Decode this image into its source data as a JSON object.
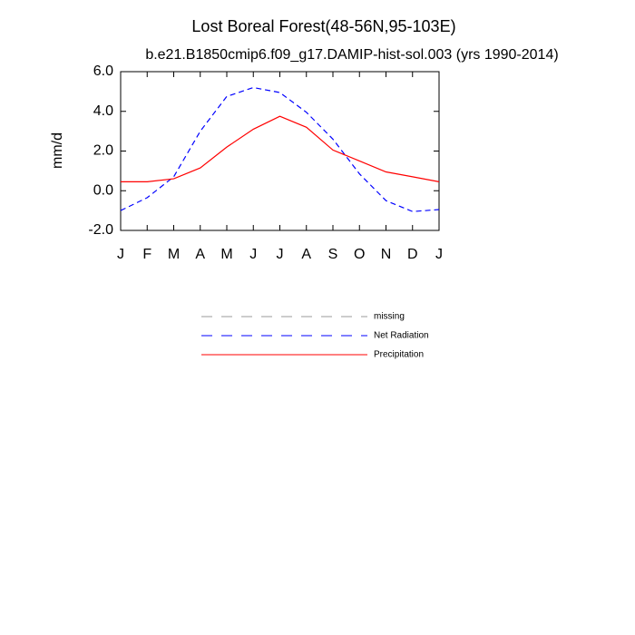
{
  "chart_data": {
    "type": "line",
    "title": "Lost Boreal Forest(48-56N,95-103E)",
    "subtitle": "b.e21.B1850cmip6.f09_g17.DAMIP-hist-sol.003 (yrs 1990-2014)",
    "y_label": "mm/d",
    "categories": [
      "J",
      "F",
      "M",
      "A",
      "M",
      "J",
      "J",
      "A",
      "S",
      "O",
      "N",
      "D",
      "J"
    ],
    "ylim": [
      -2,
      6
    ],
    "yticks": [
      {
        "value": -2,
        "label": "-2.0"
      },
      {
        "value": 0,
        "label": "0.0"
      },
      {
        "value": 2,
        "label": "2.0"
      },
      {
        "value": 4,
        "label": "4.0"
      },
      {
        "value": 6,
        "label": "6.0"
      }
    ],
    "grid": false,
    "series": [
      {
        "name": "missing",
        "color": "#999999",
        "line_style": "dashed",
        "values": [
          null,
          null,
          null,
          null,
          null,
          null,
          null,
          null,
          null,
          null,
          null,
          null,
          null
        ]
      },
      {
        "name": "Net Radiation",
        "color": "#0000ff",
        "line_style": "dashed",
        "values": [
          -1.0,
          -0.35,
          0.7,
          3.0,
          4.75,
          5.2,
          4.95,
          3.95,
          2.6,
          0.85,
          -0.5,
          -1.05,
          -0.95
        ]
      },
      {
        "name": "Precipitation",
        "color": "#ff0000",
        "line_style": "solid",
        "values": [
          0.45,
          0.45,
          0.6,
          1.15,
          2.2,
          3.1,
          3.75,
          3.2,
          2.05,
          1.5,
          0.95,
          0.7,
          0.45
        ]
      }
    ]
  }
}
